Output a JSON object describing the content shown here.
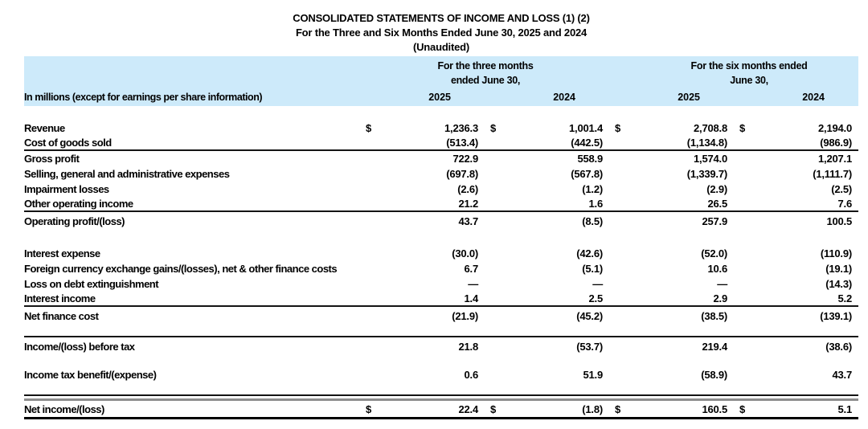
{
  "document": {
    "title": "CONSOLIDATED STATEMENTS OF INCOME AND LOSS (1) (2)",
    "subtitle": "For the Three and Six Months Ended June 30, 2025 and 2024",
    "status_line": "(Unaudited)"
  },
  "table": {
    "currency_symbol": "$",
    "units_label": "In millions (except for earnings per share information)",
    "header": {
      "bg_color": "#cdeafa",
      "groups": [
        {
          "line1": "For the three months",
          "line2": "ended June 30,",
          "years": [
            "2025",
            "2024"
          ]
        },
        {
          "line1": "For the six months ended",
          "line2": "June 30,",
          "years": [
            "2025",
            "2024"
          ]
        }
      ]
    },
    "rows": [
      {
        "label": "Revenue",
        "dollar": true,
        "values": [
          "1,236.3",
          "1,001.4",
          "2,708.8",
          "2,194.0"
        ],
        "gap": 18
      },
      {
        "label": "Cost of goods sold",
        "values": [
          "(513.4)",
          "(442.5)",
          "(1,134.8)",
          "(986.9)"
        ],
        "cls": "rule-below"
      },
      {
        "label": "Gross profit",
        "values": [
          "722.9",
          "558.9",
          "1,574.0",
          "1,207.1"
        ]
      },
      {
        "label": "Selling, general and administrative expenses",
        "values": [
          "(697.8)",
          "(567.8)",
          "(1,339.7)",
          "(1,111.7)"
        ]
      },
      {
        "label": "Impairment losses",
        "values": [
          "(2.6)",
          "(1.2)",
          "(2.9)",
          "(2.5)"
        ]
      },
      {
        "label": "Other operating income",
        "values": [
          "21.2",
          "1.6",
          "26.5",
          "7.6"
        ],
        "cls": "rule-below"
      },
      {
        "label": "Operating profit/(loss)",
        "values": [
          "43.7",
          "(8.5)",
          "257.9",
          "100.5"
        ],
        "cls": "tall"
      },
      {
        "label": "Interest expense",
        "values": [
          "(30.0)",
          "(42.6)",
          "(52.0)",
          "(110.9)"
        ],
        "gap": 20
      },
      {
        "label": "Foreign currency exchange gains/(losses), net & other finance costs",
        "values": [
          "6.7",
          "(5.1)",
          "10.6",
          "(19.1)"
        ]
      },
      {
        "label": "Loss on debt extinguishment",
        "values": [
          "—",
          "—",
          "—",
          "(14.3)"
        ]
      },
      {
        "label": "Interest income",
        "values": [
          "1.4",
          "2.5",
          "2.9",
          "5.2"
        ],
        "cls": "rule-below"
      },
      {
        "label": "Net finance cost",
        "values": [
          "(21.9)",
          "(45.2)",
          "(38.5)",
          "(139.1)"
        ],
        "cls": "tall"
      },
      {
        "label": "Income/(loss) before tax",
        "values": [
          "21.8",
          "(53.7)",
          "219.4",
          "(38.6)"
        ],
        "cls": "rule-above tall2",
        "gap": 14
      },
      {
        "label": "Income tax benefit/(expense)",
        "values": [
          "0.6",
          "51.9",
          "(58.9)",
          "43.7"
        ],
        "cls": "tall2",
        "gap": 11
      },
      {
        "label": "Net income/(loss)",
        "dollar": true,
        "values": [
          "22.4",
          "(1.8)",
          "160.5",
          "5.1"
        ],
        "cls": "total",
        "gap": 12
      }
    ]
  }
}
